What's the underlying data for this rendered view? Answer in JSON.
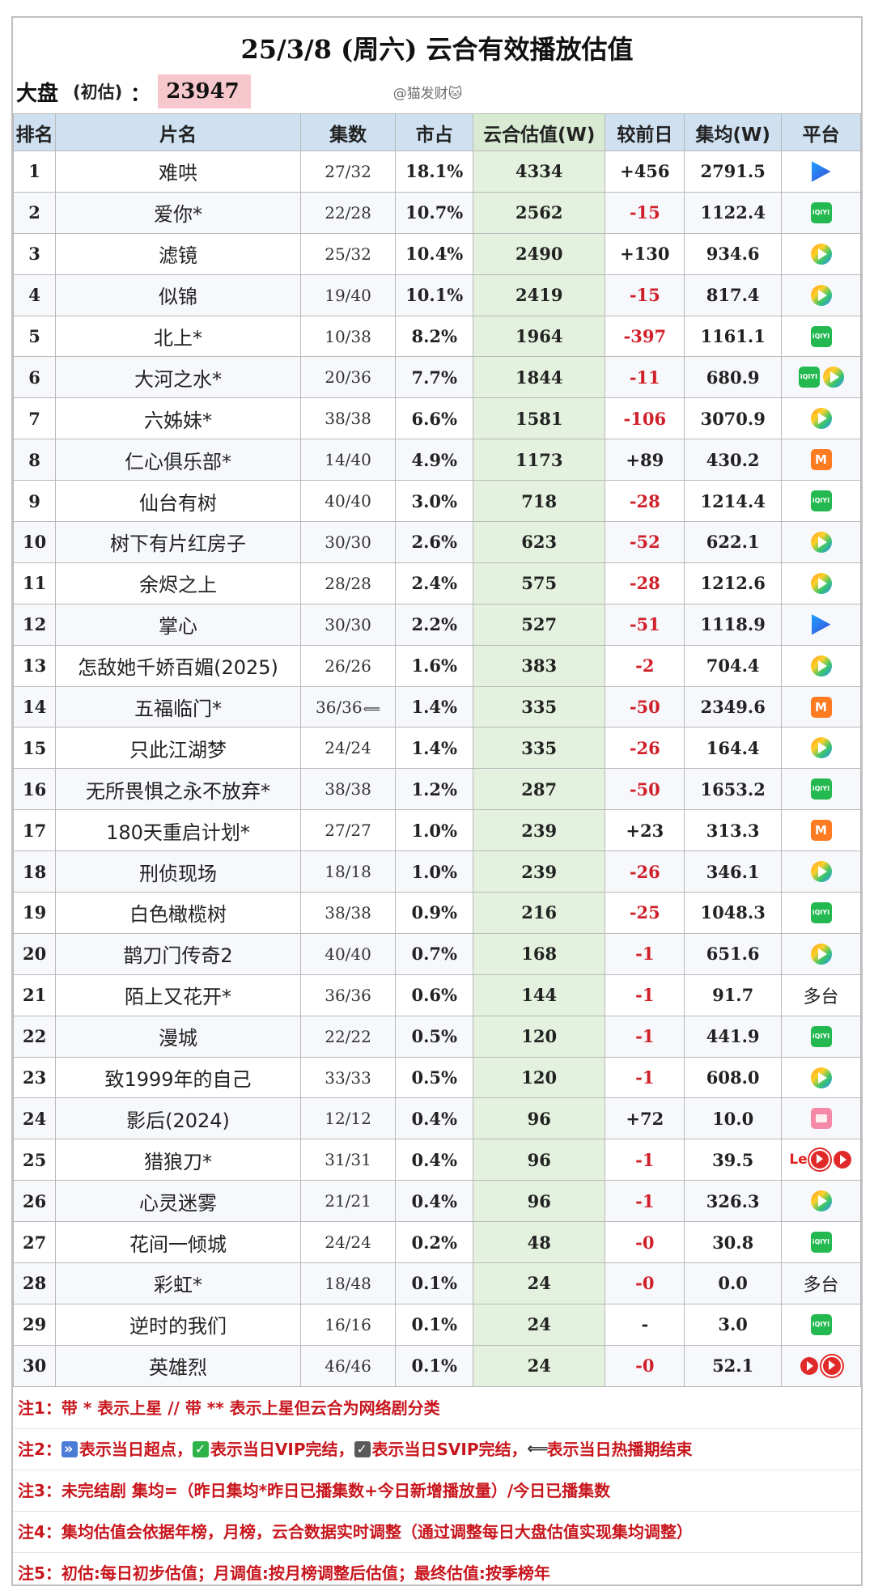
{
  "header": {
    "title": "25/3/8 (周六) 云合有效播放估值",
    "market_label": "大盘",
    "initial_label": "(初估)",
    "colon": "：",
    "market_total": "23947",
    "author_handle": "@猫发财🐱"
  },
  "table": {
    "columns": [
      "排名",
      "片名",
      "集数",
      "市占",
      "云合估值(W)",
      "较前日",
      "集均(W)",
      "平台"
    ],
    "rows": [
      {
        "rank": "1",
        "title": "难哄",
        "episodes": "27/32",
        "share": "18.1%",
        "estimate": "4334",
        "change": "+456",
        "avg": "2791.5",
        "platform": [
          "youku-icon"
        ]
      },
      {
        "rank": "2",
        "title": "爱你*",
        "episodes": "22/28",
        "share": "10.7%",
        "estimate": "2562",
        "change": "-15",
        "avg": "1122.4",
        "platform": [
          "iqiyi-icon"
        ]
      },
      {
        "rank": "3",
        "title": "滤镜",
        "episodes": "25/32",
        "share": "10.4%",
        "estimate": "2490",
        "change": "+130",
        "avg": "934.6",
        "platform": [
          "tencent-video-icon"
        ]
      },
      {
        "rank": "4",
        "title": "似锦",
        "episodes": "19/40",
        "share": "10.1%",
        "estimate": "2419",
        "change": "-15",
        "avg": "817.4",
        "platform": [
          "tencent-video-icon"
        ]
      },
      {
        "rank": "5",
        "title": "北上*",
        "episodes": "10/38",
        "share": "8.2%",
        "estimate": "1964",
        "change": "-397",
        "avg": "1161.1",
        "platform": [
          "iqiyi-icon"
        ]
      },
      {
        "rank": "6",
        "title": "大河之水*",
        "episodes": "20/36",
        "share": "7.7%",
        "estimate": "1844",
        "change": "-11",
        "avg": "680.9",
        "platform": [
          "iqiyi-icon",
          "tencent-video-icon"
        ]
      },
      {
        "rank": "7",
        "title": "六姊妹*",
        "episodes": "38/38",
        "share": "6.6%",
        "estimate": "1581",
        "change": "-106",
        "avg": "3070.9",
        "platform": [
          "tencent-video-icon"
        ]
      },
      {
        "rank": "8",
        "title": "仁心俱乐部*",
        "episodes": "14/40",
        "share": "4.9%",
        "estimate": "1173",
        "change": "+89",
        "avg": "430.2",
        "platform": [
          "mango-tv-icon"
        ]
      },
      {
        "rank": "9",
        "title": "仙台有树",
        "episodes": "40/40",
        "share": "3.0%",
        "estimate": "718",
        "change": "-28",
        "avg": "1214.4",
        "platform": [
          "iqiyi-icon"
        ]
      },
      {
        "rank": "10",
        "title": "树下有片红房子",
        "episodes": "30/30",
        "share": "2.6%",
        "estimate": "623",
        "change": "-52",
        "avg": "622.1",
        "platform": [
          "tencent-video-icon"
        ]
      },
      {
        "rank": "11",
        "title": "余烬之上",
        "episodes": "28/28",
        "share": "2.4%",
        "estimate": "575",
        "change": "-28",
        "avg": "1212.6",
        "platform": [
          "tencent-video-icon"
        ]
      },
      {
        "rank": "12",
        "title": "掌心",
        "episodes": "30/30",
        "share": "2.2%",
        "estimate": "527",
        "change": "-51",
        "avg": "1118.9",
        "platform": [
          "youku-icon"
        ]
      },
      {
        "rank": "13",
        "title": "怎敌她千娇百媚(2025)",
        "episodes": "26/26",
        "share": "1.6%",
        "estimate": "383",
        "change": "-2",
        "avg": "704.4",
        "platform": [
          "tencent-video-icon"
        ]
      },
      {
        "rank": "14",
        "title": "五福临门*",
        "episodes": "36/36",
        "ended": "END",
        "share": "1.4%",
        "estimate": "335",
        "change": "-50",
        "avg": "2349.6",
        "platform": [
          "mango-tv-icon"
        ]
      },
      {
        "rank": "15",
        "title": "只此江湖梦",
        "episodes": "24/24",
        "share": "1.4%",
        "estimate": "335",
        "change": "-26",
        "avg": "164.4",
        "platform": [
          "tencent-video-icon"
        ]
      },
      {
        "rank": "16",
        "title": "无所畏惧之永不放弃*",
        "episodes": "38/38",
        "share": "1.2%",
        "estimate": "287",
        "change": "-50",
        "avg": "1653.2",
        "platform": [
          "iqiyi-icon"
        ]
      },
      {
        "rank": "17",
        "title": "180天重启计划*",
        "episodes": "27/27",
        "share": "1.0%",
        "estimate": "239",
        "change": "+23",
        "avg": "313.3",
        "platform": [
          "mango-tv-icon"
        ]
      },
      {
        "rank": "18",
        "title": "刑侦现场",
        "episodes": "18/18",
        "share": "1.0%",
        "estimate": "239",
        "change": "-26",
        "avg": "346.1",
        "platform": [
          "tencent-video-icon"
        ]
      },
      {
        "rank": "19",
        "title": "白色橄榄树",
        "episodes": "38/38",
        "share": "0.9%",
        "estimate": "216",
        "change": "-25",
        "avg": "1048.3",
        "platform": [
          "iqiyi-icon"
        ]
      },
      {
        "rank": "20",
        "title": "鹊刀门传奇2",
        "episodes": "40/40",
        "share": "0.7%",
        "estimate": "168",
        "change": "-1",
        "avg": "651.6",
        "platform": [
          "tencent-video-icon"
        ]
      },
      {
        "rank": "21",
        "title": "陌上又花开*",
        "episodes": "36/36",
        "share": "0.6%",
        "estimate": "144",
        "change": "-1",
        "avg": "91.7",
        "platform": [],
        "platform_text": "多台"
      },
      {
        "rank": "22",
        "title": "漫城",
        "episodes": "22/22",
        "share": "0.5%",
        "estimate": "120",
        "change": "-1",
        "avg": "441.9",
        "platform": [
          "iqiyi-icon"
        ]
      },
      {
        "rank": "23",
        "title": "致1999年的自己",
        "episodes": "33/33",
        "share": "0.5%",
        "estimate": "120",
        "change": "-1",
        "avg": "608.0",
        "platform": [
          "tencent-video-icon"
        ]
      },
      {
        "rank": "24",
        "title": "影后(2024)",
        "episodes": "12/12",
        "share": "0.4%",
        "estimate": "96",
        "change": "+72",
        "avg": "10.0",
        "platform": [
          "pink-app-icon"
        ]
      },
      {
        "rank": "25",
        "title": "猎狼刀*",
        "episodes": "31/31",
        "share": "0.4%",
        "estimate": "96",
        "change": "-1",
        "avg": "39.5",
        "platform": [
          "le-logo",
          "red-play-icon",
          "red-play-icon"
        ],
        "platform_text": "Le"
      },
      {
        "rank": "26",
        "title": "心灵迷雾",
        "episodes": "21/21",
        "share": "0.4%",
        "estimate": "96",
        "change": "-1",
        "avg": "326.3",
        "platform": [
          "tencent-video-icon"
        ]
      },
      {
        "rank": "27",
        "title": "花间一倾城",
        "episodes": "24/24",
        "share": "0.2%",
        "estimate": "48",
        "change": "-0",
        "avg": "30.8",
        "platform": [
          "iqiyi-icon"
        ]
      },
      {
        "rank": "28",
        "title": "彩虹*",
        "episodes": "18/48",
        "share": "0.1%",
        "estimate": "24",
        "change": "-0",
        "avg": "0.0",
        "platform": [],
        "platform_text": "多台"
      },
      {
        "rank": "29",
        "title": "逆时的我们",
        "episodes": "16/16",
        "share": "0.1%",
        "estimate": "24",
        "change": "-",
        "avg": "3.0",
        "platform": [
          "iqiyi-icon"
        ]
      },
      {
        "rank": "30",
        "title": "英雄烈",
        "episodes": "46/46",
        "share": "0.1%",
        "estimate": "24",
        "change": "-0",
        "avg": "52.1",
        "platform": [
          "red-play-icon",
          "red-play-icon"
        ]
      }
    ]
  },
  "icon_text": {
    "iqiyi": "iQIYI",
    "mango": "M"
  },
  "notes": {
    "note1": "注1：带 * 表示上星 // 带 ** 表示上星但云合为网络剧分类",
    "note2_prefix": "注2：",
    "note2_a": "表示当日超点，",
    "note2_b": "表示当日VIP完结，",
    "note2_c": "表示当日SVIP完结，",
    "note2_d": "表示当日热播期结束",
    "note3": "注3：未完结剧 集均=（昨日集均*昨日已播集数+今日新增播放量）/今日已播集数",
    "note4": "注4：集均估值会依据年榜，月榜，云合数据实时调整（通过调整每日大盘估值实现集均调整）",
    "note5": "注5：初估:每日初步估值；月调值:按月榜调整后估值；最终估值:按季榜年"
  },
  "colors": {
    "header_bg": "#cfe0f1",
    "estimate_col_bg": "#e4f1de",
    "negative_change": "#d0202a",
    "notes_text": "#c8161d",
    "market_total_bg": "#f6c7cc"
  }
}
